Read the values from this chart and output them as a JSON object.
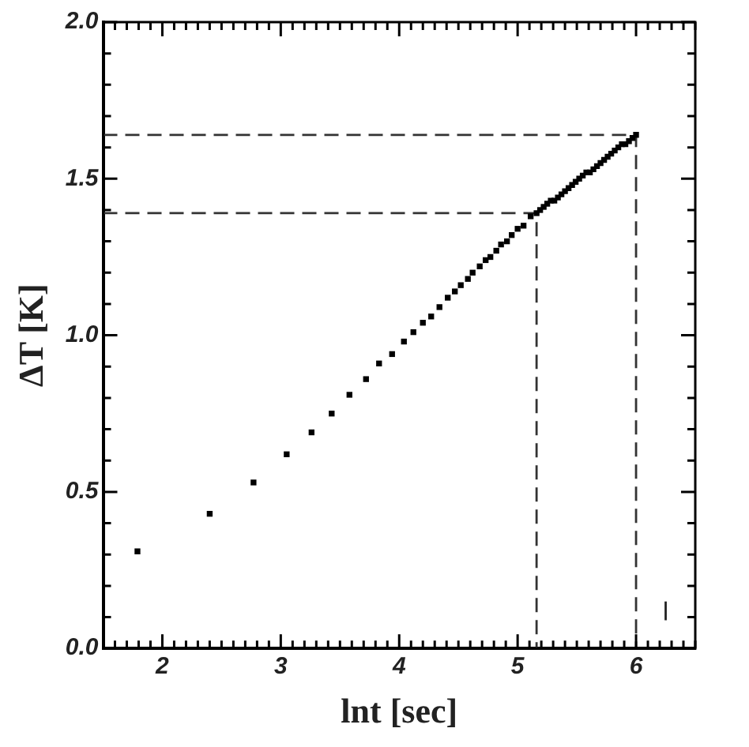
{
  "chart_data": {
    "type": "scatter",
    "xlabel": "lnt [sec]",
    "ylabel": "ΔT [K]",
    "xlim": [
      1.5,
      6.5
    ],
    "ylim": [
      0,
      2
    ],
    "xticks": [
      {
        "value": 1.5,
        "label": null
      },
      {
        "value": 1.6,
        "label": null
      },
      {
        "value": 1.7,
        "label": null
      },
      {
        "value": 1.8,
        "label": null
      },
      {
        "value": 1.9,
        "label": null
      },
      2,
      {
        "value": 2.1,
        "label": null
      },
      {
        "value": 2.2,
        "label": null
      },
      {
        "value": 2.3,
        "label": null
      },
      {
        "value": 2.4,
        "label": null
      },
      {
        "value": 2.5,
        "label": null
      },
      {
        "value": 2.6,
        "label": null
      },
      {
        "value": 2.7,
        "label": null
      },
      {
        "value": 2.8,
        "label": null
      },
      {
        "value": 2.9,
        "label": null
      },
      3,
      {
        "value": 3.1,
        "label": null
      },
      {
        "value": 3.2,
        "label": null
      },
      {
        "value": 3.3,
        "label": null
      },
      {
        "value": 3.4,
        "label": null
      },
      {
        "value": 3.5,
        "label": null
      },
      {
        "value": 3.6,
        "label": null
      },
      {
        "value": 3.7,
        "label": null
      },
      {
        "value": 3.8,
        "label": null
      },
      {
        "value": 3.9,
        "label": null
      },
      4,
      {
        "value": 4.1,
        "label": null
      },
      {
        "value": 4.2,
        "label": null
      },
      {
        "value": 4.3,
        "label": null
      },
      {
        "value": 4.4,
        "label": null
      },
      {
        "value": 4.5,
        "label": null
      },
      {
        "value": 4.6,
        "label": null
      },
      {
        "value": 4.7,
        "label": null
      },
      {
        "value": 4.8,
        "label": null
      },
      {
        "value": 4.9,
        "label": null
      },
      5,
      {
        "value": 5.1,
        "label": null
      },
      {
        "value": 5.2,
        "label": null
      },
      {
        "value": 5.3,
        "label": null
      },
      {
        "value": 5.4,
        "label": null
      },
      {
        "value": 5.5,
        "label": null
      },
      {
        "value": 5.6,
        "label": null
      },
      {
        "value": 5.7,
        "label": null
      },
      {
        "value": 5.8,
        "label": null
      },
      {
        "value": 5.9,
        "label": null
      },
      6,
      {
        "value": 6.1,
        "label": null
      },
      {
        "value": 6.2,
        "label": null
      },
      {
        "value": 6.3,
        "label": null
      },
      {
        "value": 6.4,
        "label": null
      },
      {
        "value": 6.5,
        "label": null
      }
    ],
    "yticks": [
      {
        "value": 0,
        "label": "0.0"
      },
      {
        "value": 0.1,
        "label": null
      },
      {
        "value": 0.2,
        "label": null
      },
      {
        "value": 0.3,
        "label": null
      },
      {
        "value": 0.4,
        "label": null
      },
      {
        "value": 0.5,
        "label": "0.5"
      },
      {
        "value": 0.6,
        "label": null
      },
      {
        "value": 0.7,
        "label": null
      },
      {
        "value": 0.8,
        "label": null
      },
      {
        "value": 0.9,
        "label": null
      },
      {
        "value": 1,
        "label": "1.0"
      },
      {
        "value": 1.1,
        "label": null
      },
      {
        "value": 1.2,
        "label": null
      },
      {
        "value": 1.3,
        "label": null
      },
      {
        "value": 1.4,
        "label": null
      },
      {
        "value": 1.5,
        "label": "1.5"
      },
      {
        "value": 1.6,
        "label": null
      },
      {
        "value": 1.7,
        "label": null
      },
      {
        "value": 1.8,
        "label": null
      },
      {
        "value": 1.9,
        "label": null
      },
      {
        "value": 2,
        "label": "2.0"
      }
    ],
    "grid": false,
    "legend": false,
    "marker": "square",
    "series": [
      {
        "type": "scatter",
        "color": "#000000",
        "x": [
          1.79,
          2.4,
          2.77,
          3.05,
          3.26,
          3.43,
          3.58,
          3.72,
          3.83,
          3.94,
          4.04,
          4.12,
          4.2,
          4.27,
          4.34,
          4.41,
          4.47,
          4.52,
          4.58,
          4.62,
          4.68,
          4.73,
          4.77,
          4.82,
          4.86,
          4.91,
          4.95,
          5.0,
          5.05,
          5.11,
          5.16,
          5.19,
          5.22,
          5.25,
          5.28,
          5.31,
          5.34,
          5.37,
          5.4,
          5.43,
          5.46,
          5.49,
          5.52,
          5.55,
          5.58,
          5.61,
          5.64,
          5.67,
          5.7,
          5.73,
          5.76,
          5.79,
          5.82,
          5.85,
          5.88,
          5.91,
          5.94,
          5.97,
          6.0
        ],
        "values": [
          0.31,
          0.43,
          0.53,
          0.62,
          0.69,
          0.75,
          0.81,
          0.86,
          0.91,
          0.94,
          0.98,
          1.01,
          1.04,
          1.06,
          1.09,
          1.12,
          1.14,
          1.16,
          1.18,
          1.2,
          1.22,
          1.24,
          1.25,
          1.27,
          1.29,
          1.3,
          1.32,
          1.34,
          1.35,
          1.38,
          1.39,
          1.4,
          1.41,
          1.42,
          1.43,
          1.43,
          1.44,
          1.45,
          1.46,
          1.47,
          1.48,
          1.49,
          1.5,
          1.51,
          1.52,
          1.52,
          1.53,
          1.54,
          1.55,
          1.56,
          1.57,
          1.58,
          1.59,
          1.6,
          1.61,
          1.61,
          1.62,
          1.63,
          1.64
        ]
      },
      {
        "type": "line",
        "color": "#333333",
        "line_style": "dashed",
        "marker": "none",
        "x": [
          1.5,
          5.16,
          5.16
        ],
        "values": [
          1.39,
          1.39,
          0
        ]
      },
      {
        "type": "line",
        "color": "#333333",
        "line_style": "dashed",
        "marker": "none",
        "x": [
          1.5,
          6.0,
          6.0
        ],
        "values": [
          1.64,
          1.64,
          0
        ]
      },
      {
        "type": "line",
        "color": "#222222",
        "line_style": "solid",
        "marker": "none",
        "x": [
          6.25,
          6.25
        ],
        "values": [
          0.09,
          0.15
        ]
      }
    ]
  }
}
